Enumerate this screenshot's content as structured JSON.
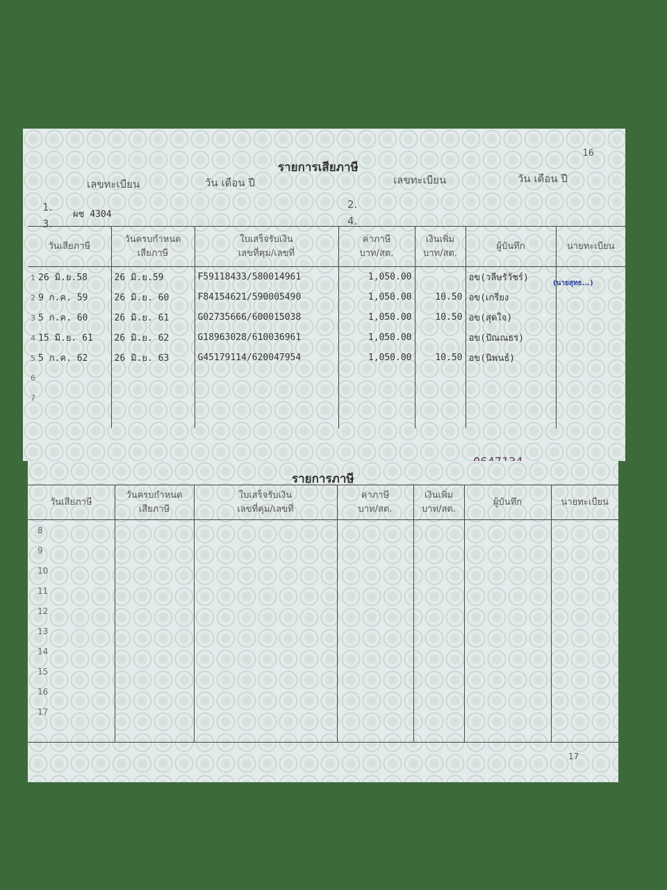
{
  "top_page": {
    "page_number": "16",
    "title": "รายการเสียภาษี",
    "reg_label": "เลขทะเบียน",
    "date_label": "วัน เดือน ปี",
    "reg_slots": [
      {
        "n": "1.",
        "value": "ผช 4304"
      },
      {
        "n": "2.",
        "value": ""
      },
      {
        "n": "3.",
        "value": ""
      },
      {
        "n": "4.",
        "value": ""
      }
    ],
    "headers": [
      "วันเสียภาษี",
      "วันครบกำหนด\nเสียภาษี",
      "ใบเสร็จรับเงิน\nเลขที่คุม/เลขที่",
      "ค่าภาษี\nบาท/สต.",
      "เงินเพิ่ม\nบาท/สต.",
      "ผู้บันทึก",
      "นายทะเบียน"
    ],
    "rows": [
      {
        "n": "1",
        "paid": "26 มิ.ย.58",
        "due": "26 มิ.ย.59",
        "receipt": "F59118433/580014961",
        "tax": "1,050.00",
        "surcharge": "",
        "recorder": "อข(วลีษรัวัชร์)"
      },
      {
        "n": "2",
        "paid": "9 ก.ค. 59",
        "due": "26 มิ.ย. 60",
        "receipt": "F84154621/590005490",
        "tax": "1,050.00",
        "surcharge": "10.50",
        "recorder": "อข(เกรียง"
      },
      {
        "n": "3",
        "paid": "5 ก.ค. 60",
        "due": "26 มิ.ย. 61",
        "receipt": "G02735666/600015038",
        "tax": "1,050.00",
        "surcharge": "10.50",
        "recorder": "อข(สุดใจ)"
      },
      {
        "n": "4",
        "paid": "15 มิ.ย. 61",
        "due": "26 มิ.ย. 62",
        "receipt": "G18963028/610036961",
        "tax": "1,050.00",
        "surcharge": "",
        "recorder": "อข(ปัณณธร)"
      },
      {
        "n": "5",
        "paid": "5 ก.ค. 62",
        "due": "26 มิ.ย. 63",
        "receipt": "G45179114/620047954",
        "tax": "1,050.00",
        "surcharge": "10.50",
        "recorder": "อข(นิพนธ์)"
      },
      {
        "n": "6"
      },
      {
        "n": "7"
      }
    ],
    "serial": "0647134"
  },
  "bottom_page": {
    "page_number": "17",
    "title": "รายการภาษี",
    "headers": [
      "วันเสียภาษี",
      "วันครบกำหนด\nเสียภาษี",
      "ใบเสร็จรับเงิน\nเลขที่คุม/เลขที่",
      "ค่าภาษี\nบาท/สต.",
      "เงินเพิ่ม\nบาท/สต.",
      "ผู้บันทึก",
      "นายทะเบียน"
    ],
    "rows": [
      "8",
      "9",
      "10",
      "11",
      "12",
      "13",
      "14",
      "15",
      "16",
      "17"
    ]
  },
  "colors": {
    "background": "#3d6a3a",
    "paper": "#e4ebea",
    "stamp": "#2a3fa0"
  }
}
